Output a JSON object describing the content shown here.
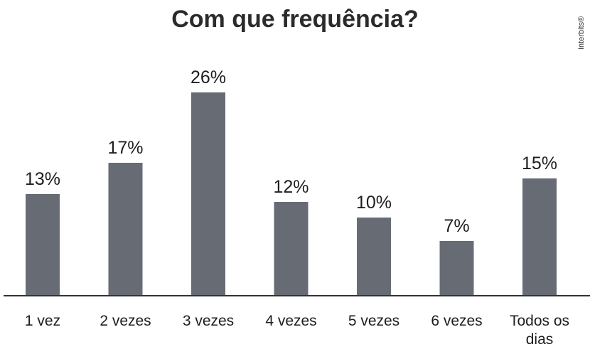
{
  "chart_data": {
    "type": "bar",
    "title": "Com que frequência?",
    "categories": [
      "1 vez",
      "2 vezes",
      "3 vezes",
      "4 vezes",
      "5 vezes",
      "6 vezes",
      "Todos os dias"
    ],
    "values": [
      13,
      17,
      26,
      12,
      10,
      7,
      15
    ],
    "value_labels": [
      "13%",
      "17%",
      "26%",
      "12%",
      "10%",
      "7%",
      "15%"
    ],
    "xlabel": "",
    "ylabel": "",
    "ylim": [
      0,
      30
    ],
    "grid": false,
    "bar_color": "#676c74"
  },
  "watermark": "Interbits®"
}
